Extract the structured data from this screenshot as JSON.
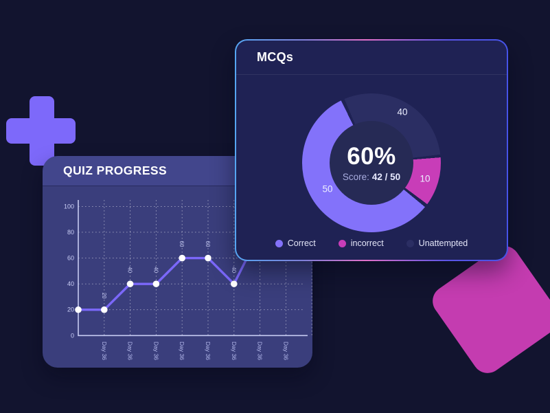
{
  "page": {
    "bg": "#12142F"
  },
  "decorations": {
    "plus_color": "#7D69FA",
    "square_color": "#C43CB0"
  },
  "quiz_card": {
    "title": "QUIZ PROGRESS",
    "bg_header": "#42468C",
    "bg_body": "#3A3E7C"
  },
  "mcq_card": {
    "title": "MCQs",
    "bg": "#1F2254",
    "border_gradient": [
      "#55A6F2",
      "#7F7FD8",
      "#E06FC8",
      "#5A55E6",
      "#4553E8"
    ],
    "center_percent": "60%",
    "score_label": "Score:",
    "score_value": "42 / 50"
  },
  "chart_data": [
    {
      "type": "line",
      "title": "QUIZ PROGRESS",
      "categories": [
        "Day 36",
        "Day 36",
        "Day 36",
        "Day 36",
        "Day 36",
        "Day 36",
        "Day 36",
        "Day 36"
      ],
      "values": [
        20,
        20,
        40,
        40,
        60,
        60,
        40,
        80
      ],
      "point_labels": [
        "",
        "20",
        "40",
        "40",
        "60",
        "60",
        "40",
        ""
      ],
      "xlabel": "",
      "ylabel": "",
      "ylim": [
        0,
        100
      ],
      "yticks": [
        0,
        20,
        40,
        60,
        80,
        100
      ],
      "grid": true,
      "grid_style": "dotted",
      "line_color": "#7B68FA",
      "point_color": "#FFFFFF",
      "note": "last point rises behind the MCQs card and is partially hidden"
    },
    {
      "type": "pie",
      "subtype": "donut",
      "title": "MCQs",
      "segments": [
        {
          "label": "Correct",
          "value": 50,
          "color": "#8372FA",
          "angle_start": 129.5,
          "angle_end": 334
        },
        {
          "label": "incorrect",
          "value": 10,
          "color": "#C83DB8",
          "angle_start": 85.5,
          "angle_end": 126.5
        },
        {
          "label": "Unattempted",
          "value": 40,
          "color": "#2B2E63",
          "angle_start": 337,
          "angle_end": 443
        }
      ],
      "center_text": "60%",
      "center_subtext": "Score: 42 / 50",
      "hole_color": "#262A55",
      "legend_position": "bottom"
    }
  ]
}
